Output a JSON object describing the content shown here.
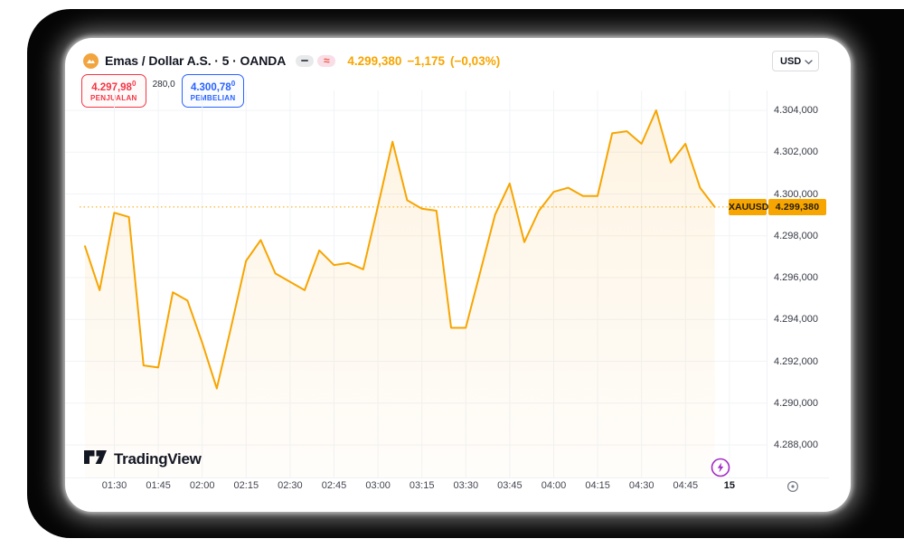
{
  "header": {
    "symbol_title": "Emas / Dollar A.S. · 5 · OANDA",
    "last_price": "4.299,380",
    "change": "−1,175",
    "change_pct": "(−0,03%)"
  },
  "window": {
    "currency_selector": "USD"
  },
  "trade_panel": {
    "sell_price": "4.297,98",
    "sell_price_sup": "0",
    "sell_label": "PENJUALAN",
    "spread": "280,0",
    "buy_price": "4.300,78",
    "buy_price_sup": "0",
    "buy_label": "PEMBELIAN"
  },
  "price_scale": {
    "labels": [
      "4.304,000",
      "4.302,000",
      "4.300,000",
      "4.298,000",
      "4.296,000",
      "4.294,000",
      "4.292,000",
      "4.290,000",
      "4.288,000"
    ]
  },
  "time_scale": {
    "labels": [
      "01:30",
      "01:45",
      "02:00",
      "02:15",
      "02:30",
      "02:45",
      "03:00",
      "03:15",
      "03:30",
      "03:45",
      "04:00",
      "04:15",
      "04:30",
      "04:45"
    ],
    "date_marker": "15"
  },
  "price_marker": {
    "symbol": "XAUUSD",
    "value": "4.299,380"
  },
  "footer": {
    "brand": "TradingView"
  },
  "icons": {
    "gold_coin": "coin",
    "minus_pill": "−",
    "wave_pill": "≈",
    "chevron_down": "⌄",
    "lightning": "⚡",
    "goto_latest": "◎",
    "tradingview_logo": "TV"
  },
  "colors": {
    "line_amber": "#F7A500",
    "sell_red": "#F23645",
    "buy_blue": "#2962FF",
    "text_dark": "#131722",
    "axis_text": "#3C404B",
    "grid": "#F1F3F6",
    "boost_purple": "#A22BC8",
    "badge_bg": "#F7A500",
    "frame_black": "#050505"
  },
  "chart_data": {
    "type": "line",
    "title": "Emas / Dollar A.S. (XAUUSD) · 5 · OANDA",
    "x": [
      "01:20",
      "01:25",
      "01:30",
      "01:35",
      "01:40",
      "01:45",
      "01:50",
      "01:55",
      "02:00",
      "02:05",
      "02:10",
      "02:15",
      "02:20",
      "02:25",
      "02:30",
      "02:35",
      "02:40",
      "02:45",
      "02:50",
      "02:55",
      "03:00",
      "03:05",
      "03:10",
      "03:15",
      "03:20",
      "03:25",
      "03:30",
      "03:35",
      "03:40",
      "03:45",
      "03:50",
      "03:55",
      "04:00",
      "04:05",
      "04:10",
      "04:15",
      "04:20",
      "04:25",
      "04:30",
      "04:35",
      "04:40",
      "04:45",
      "04:50",
      "04:55"
    ],
    "values": [
      4297.5,
      4295.4,
      4299.1,
      4298.9,
      4291.8,
      4291.7,
      4295.3,
      4294.9,
      4292.9,
      4290.7,
      4293.7,
      4296.8,
      4297.8,
      4296.2,
      4295.8,
      4295.4,
      4297.3,
      4296.6,
      4296.7,
      4296.4,
      4299.4,
      4302.5,
      4299.7,
      4299.3,
      4299.2,
      4293.6,
      4293.6,
      4296.3,
      4299.0,
      4300.5,
      4297.7,
      4299.2,
      4300.1,
      4300.3,
      4299.9,
      4299.9,
      4302.9,
      4303.0,
      4302.4,
      4304.0,
      4301.5,
      4302.4,
      4300.3,
      4299.38
    ],
    "ylim": [
      4288,
      4304
    ],
    "y_ticks": [
      4304,
      4302,
      4300,
      4298,
      4296,
      4294,
      4292,
      4290,
      4288
    ],
    "x_ticks": [
      "01:30",
      "01:45",
      "02:00",
      "02:15",
      "02:30",
      "02:45",
      "03:00",
      "03:15",
      "03:30",
      "03:45",
      "04:00",
      "04:15",
      "04:30",
      "04:45",
      "15"
    ],
    "last_price": 4299.38,
    "line_color": "#F7A500",
    "fill_top": "rgba(246,166,30,0.13)",
    "fill_bottom": "rgba(246,166,30,0.02)",
    "grid": true,
    "legend": false,
    "xlabel": "",
    "ylabel": ""
  }
}
